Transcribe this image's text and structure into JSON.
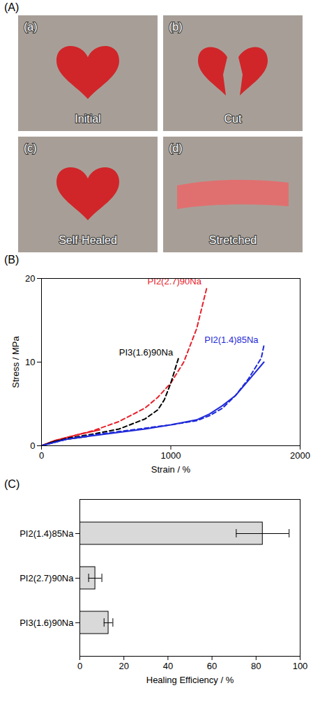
{
  "chart_data": [
    {
      "type": "photos",
      "panel": "(A)",
      "photos": [
        {
          "letter": "(a)",
          "caption": "Initial"
        },
        {
          "letter": "(b)",
          "caption": "Cut"
        },
        {
          "letter": "(c)",
          "caption": "Self-Healed"
        },
        {
          "letter": "(d)",
          "caption": "Stretched"
        }
      ]
    },
    {
      "type": "line",
      "panel": "(B)",
      "x_label": "Strain / %",
      "y_label": "Stress / MPa",
      "xlim": [
        0,
        2000
      ],
      "xticks": [
        0,
        1000,
        2000
      ],
      "ylim": [
        0,
        20
      ],
      "yticks": [
        0,
        10,
        20
      ],
      "grid": false,
      "series": [
        {
          "name": "PI2(2.7)90Na",
          "color": "#e8202a",
          "line_style": "dashed",
          "x": [
            0,
            100,
            200,
            400,
            600,
            800,
            900,
            1000,
            1100,
            1200,
            1280
          ],
          "values": [
            0,
            0.6,
            1.0,
            1.8,
            2.9,
            4.5,
            5.8,
            7.5,
            10,
            14,
            19
          ]
        },
        {
          "color": "#e8202a",
          "line_style": "solid",
          "x": [
            0,
            100,
            200,
            300,
            450
          ],
          "values": [
            0,
            0.6,
            1.0,
            1.4,
            1.9
          ]
        },
        {
          "name": "PI3(1.6)90Na",
          "color": "#000000",
          "line_style": "dashed",
          "x": [
            0,
            100,
            200,
            400,
            600,
            800,
            900,
            950,
            1000,
            1030,
            1060
          ],
          "values": [
            0,
            0.5,
            0.9,
            1.4,
            2.0,
            3.2,
            4.3,
            5.5,
            7.5,
            9,
            10.5
          ]
        },
        {
          "color": "#000000",
          "line_style": "solid",
          "x": [
            0,
            100,
            200,
            350
          ],
          "values": [
            0,
            0.5,
            0.8,
            1.1
          ]
        },
        {
          "name": "PI2(1.4)85Na",
          "color": "#1f2ad8",
          "line_style": "dashed",
          "x": [
            0,
            200,
            400,
            600,
            800,
            1000,
            1200,
            1300,
            1400,
            1500,
            1600,
            1700,
            1720
          ],
          "values": [
            0,
            0.8,
            1.3,
            1.7,
            2.1,
            2.5,
            3.0,
            3.6,
            4.5,
            6,
            8,
            10.5,
            12
          ]
        },
        {
          "color": "#1f2ad8",
          "line_style": "solid",
          "x": [
            0,
            200,
            400,
            600,
            800,
            1000,
            1200,
            1300,
            1400,
            1500,
            1600,
            1720
          ],
          "values": [
            0,
            0.8,
            1.2,
            1.6,
            2.0,
            2.5,
            3.1,
            3.8,
            4.8,
            6,
            7.8,
            10
          ]
        }
      ]
    },
    {
      "type": "bar",
      "panel": "(C)",
      "orientation": "horizontal",
      "x_label": "Healing Efficiency / %",
      "categories": [
        "PI2(1.4)85Na",
        "PI2(2.7)90Na",
        "PI3(1.6)90Na"
      ],
      "values": [
        83,
        7,
        13
      ],
      "errors": [
        12,
        3,
        2
      ],
      "color": "#d9d9d9",
      "xlim": [
        0,
        100
      ],
      "xticks": [
        0,
        20,
        40,
        60,
        80,
        100
      ],
      "grid": false
    }
  ]
}
